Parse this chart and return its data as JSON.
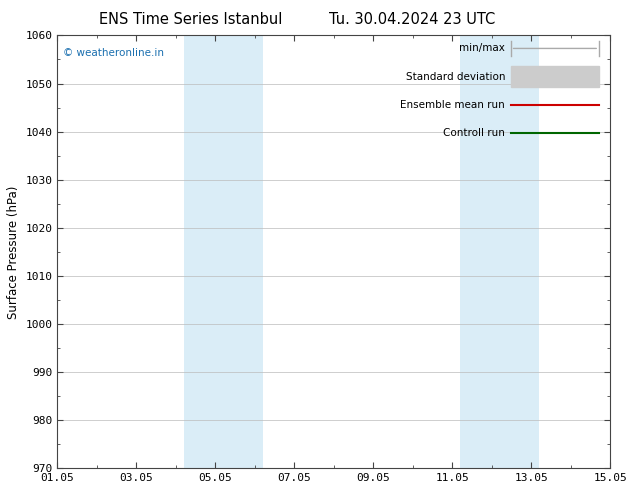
{
  "title_left": "ENS Time Series Istanbul",
  "title_right": "Tu. 30.04.2024 23 UTC",
  "ylabel": "Surface Pressure (hPa)",
  "ymin": 970,
  "ymax": 1060,
  "ytick_step": 10,
  "xmin": 0,
  "xmax": 14,
  "xtick_labels": [
    "01.05",
    "03.05",
    "05.05",
    "07.05",
    "09.05",
    "11.05",
    "13.05",
    "15.05"
  ],
  "xtick_positions": [
    0,
    2,
    4,
    6,
    8,
    10,
    12,
    14
  ],
  "shaded_bands": [
    {
      "xstart": 3.2,
      "xend": 5.2,
      "color": "#daedf7"
    },
    {
      "xstart": 10.2,
      "xend": 12.2,
      "color": "#daedf7"
    }
  ],
  "watermark": "© weatheronline.in",
  "watermark_color": "#1a6faf",
  "legend_entries": [
    {
      "label": "min/max",
      "color": "#aaaaaa",
      "style": "minmax"
    },
    {
      "label": "Standard deviation",
      "color": "#cccccc",
      "style": "fill"
    },
    {
      "label": "Ensemble mean run",
      "color": "#cc0000",
      "style": "line"
    },
    {
      "label": "Controll run",
      "color": "#006600",
      "style": "line"
    }
  ],
  "bg_color": "#ffffff",
  "plot_bg_color": "#ffffff",
  "grid_color": "#bbbbbb",
  "spine_color": "#444444",
  "title_fontsize": 10.5,
  "label_fontsize": 8.5,
  "tick_fontsize": 8,
  "legend_fontsize": 7.5
}
